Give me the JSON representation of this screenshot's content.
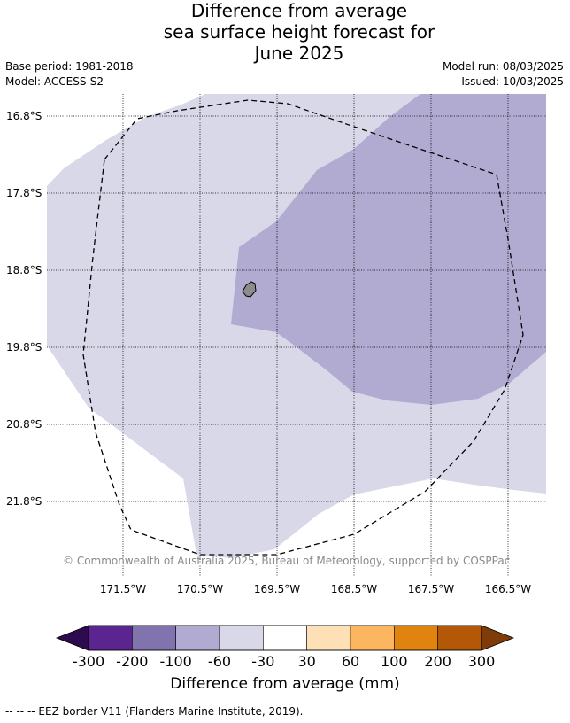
{
  "title": {
    "line1": "Difference from average",
    "line2": "sea surface height forecast for",
    "line3": "June 2025"
  },
  "meta": {
    "base_period": "Base period: 1981-2018",
    "model": "Model: ACCESS-S2",
    "model_run": "Model run: 08/03/2025",
    "issued": "Issued: 10/03/2025"
  },
  "map": {
    "lat_labels": [
      "16.8°S",
      "17.8°S",
      "18.8°S",
      "19.8°S",
      "20.8°S",
      "21.8°S"
    ],
    "lon_labels": [
      "171.5°W",
      "170.5°W",
      "169.5°W",
      "168.5°W",
      "167.5°W",
      "166.5°W"
    ],
    "copyright": "© Commonwealth of Australia 2025, Bureau of Meteorology, supported by COSPPac",
    "colors": {
      "range_neg60_neg30": "#d8d8e8",
      "range_neg100_neg60": "#b1abd2",
      "land": "#8c8c8c",
      "grid": "#000000"
    }
  },
  "colorbar": {
    "title": "Difference from average (mm)",
    "ticks": [
      "-300",
      "-200",
      "-100",
      "-60",
      "-30",
      "30",
      "60",
      "100",
      "200",
      "300"
    ],
    "colors": [
      "#2e0b4f",
      "#5b2590",
      "#8173ae",
      "#b1abd2",
      "#d8d8e8",
      "#ffffff",
      "#fee0b6",
      "#fbb65f",
      "#e0830f",
      "#b35806",
      "#7f3b08"
    ]
  },
  "footer": {
    "legend": "--  --  -- EEZ border V11 (Flanders Marine Institute, 2019)."
  }
}
